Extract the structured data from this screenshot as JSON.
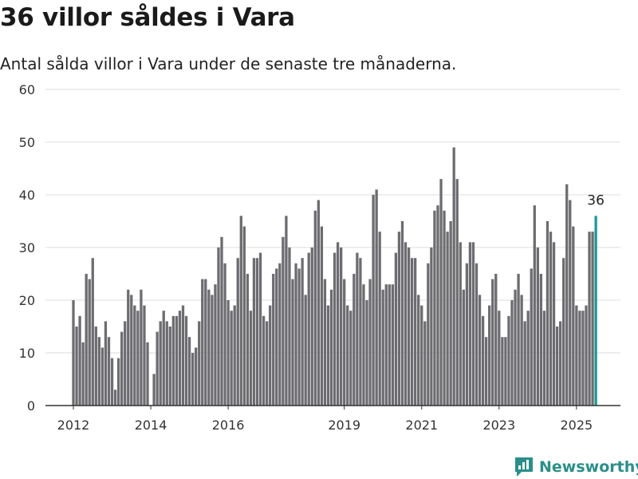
{
  "header": {
    "title": "36 villor såldes i Vara",
    "subtitle": "Antal sålda villor i Vara under de senaste tre månaderna."
  },
  "brand": {
    "name": "Newsworthy",
    "color": "#2a8f8a"
  },
  "colors": {
    "bar": "#6d6c70",
    "highlight": "#1a9a94",
    "grid": "#dedede",
    "axis": "#333333"
  },
  "chart_data": {
    "type": "bar",
    "title": "36 villor såldes i Vara",
    "subtitle": "Antal sålda villor i Vara under de senaste tre månaderna.",
    "xlabel": "",
    "ylabel": "",
    "ylim": [
      0,
      60
    ],
    "yticks": [
      0,
      10,
      20,
      30,
      40,
      50,
      60
    ],
    "xtick_labels": [
      "2012",
      "2014",
      "2016",
      "2019",
      "2021",
      "2023",
      "2025"
    ],
    "grid": true,
    "annotation": {
      "label": "36",
      "index": 162
    },
    "start": "2012-01",
    "values": [
      20,
      15,
      17,
      12,
      25,
      24,
      28,
      15,
      13,
      11,
      16,
      13,
      9,
      3,
      9,
      14,
      16,
      22,
      21,
      19,
      18,
      22,
      19,
      12,
      0,
      6,
      14,
      16,
      18,
      16,
      15,
      17,
      17,
      18,
      19,
      17,
      13,
      10,
      11,
      16,
      24,
      24,
      22,
      21,
      23,
      30,
      32,
      27,
      20,
      18,
      19,
      28,
      36,
      34,
      25,
      18,
      28,
      28,
      29,
      17,
      16,
      19,
      25,
      26,
      27,
      32,
      36,
      30,
      24,
      27,
      26,
      28,
      21,
      29,
      30,
      37,
      39,
      34,
      24,
      19,
      22,
      29,
      31,
      30,
      24,
      19,
      18,
      25,
      29,
      28,
      23,
      20,
      24,
      40,
      41,
      33,
      22,
      23,
      23,
      23,
      29,
      33,
      35,
      31,
      30,
      28,
      28,
      21,
      19,
      16,
      27,
      30,
      37,
      38,
      43,
      37,
      33,
      35,
      49,
      43,
      31,
      22,
      27,
      31,
      31,
      27,
      21,
      17,
      13,
      19,
      24,
      25,
      18,
      13,
      13,
      17,
      20,
      22,
      25,
      21,
      16,
      18,
      26,
      38,
      30,
      25,
      18,
      35,
      33,
      31,
      15,
      16,
      28,
      42,
      39,
      34,
      19,
      18,
      18,
      19,
      33,
      33,
      36
    ]
  }
}
